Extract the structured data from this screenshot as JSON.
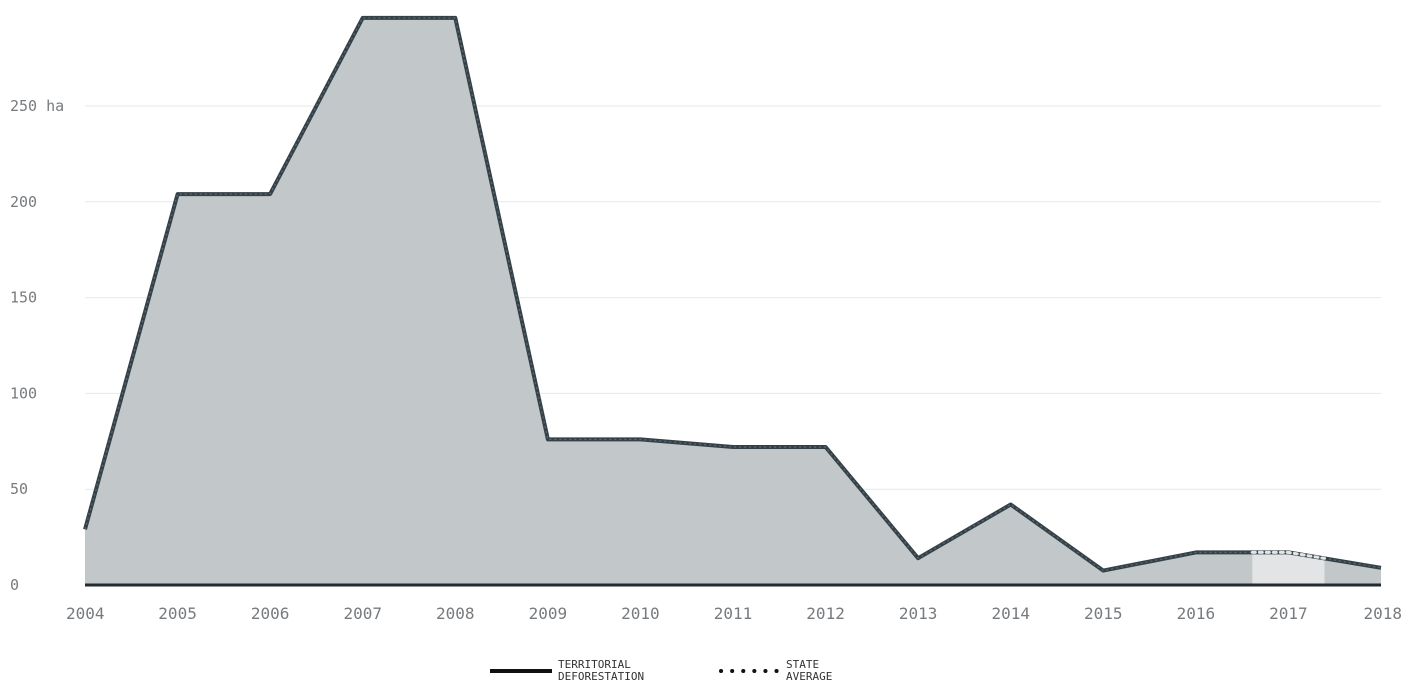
{
  "chart_data": {
    "type": "area",
    "x": [
      2004,
      2005,
      2006,
      2007,
      2008,
      2009,
      2010,
      2011,
      2012,
      2013,
      2014,
      2015,
      2016,
      2017,
      2018
    ],
    "x_tick_labels": [
      "2004",
      "2005",
      "2006",
      "2007",
      "2008",
      "2009",
      "2010",
      "2011",
      "2012",
      "2013",
      "2014",
      "2015",
      "2016",
      "2017",
      "2018"
    ],
    "series": [
      {
        "name": "TERRITORIAL DEFORESTATION",
        "values": [
          29,
          204,
          204,
          296,
          296,
          76,
          76,
          72,
          72,
          14,
          42,
          7.5,
          17,
          17,
          9
        ]
      },
      {
        "name": "STATE AVERAGE",
        "values": [
          29,
          204,
          204,
          296,
          296,
          76,
          76,
          72,
          72,
          14,
          42,
          7.5,
          17,
          17,
          9
        ]
      }
    ],
    "highlight_x": 2017,
    "y_ticks": [
      0,
      50,
      100,
      150,
      200,
      250
    ],
    "y_tick_labels": [
      "0",
      "50",
      "100",
      "150",
      "200",
      "250 ha"
    ],
    "ylim": [
      0,
      300
    ],
    "xlim": [
      2004,
      2018
    ],
    "grid": true,
    "legend_position": "bottom-center",
    "colors": {
      "area_fill": "#c2c7c9",
      "highlight_fill": "#e2e4e5",
      "line": "#354148",
      "grid": "#e6e8e9",
      "axis": "#222a2e",
      "tick_text": "#777b7e"
    }
  },
  "legend": {
    "items": [
      {
        "label": "TERRITORIAL\nDEFORESTATION",
        "style": "solid"
      },
      {
        "label": "STATE\nAVERAGE",
        "style": "dotted"
      }
    ]
  }
}
